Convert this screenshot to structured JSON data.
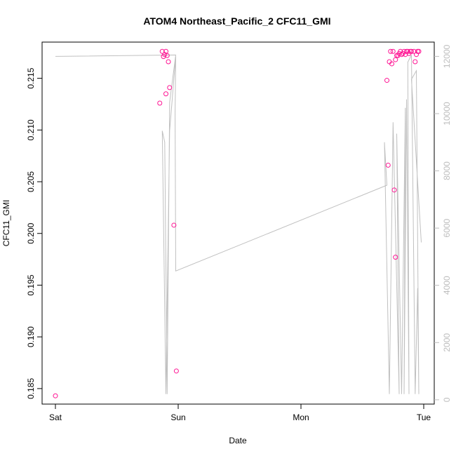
{
  "chart_data": {
    "type": "scatter",
    "title": "ATOM4 Northeast_Pacific_2 CFC11_GMI",
    "xlabel": "Date",
    "ylabel": "CFC11_GMI",
    "x_tick_labels": [
      "Sat",
      "Sun",
      "Mon",
      "Tue"
    ],
    "x_range_days": [
      0,
      3.05
    ],
    "y_ticks": [
      0.185,
      0.19,
      0.195,
      0.2,
      0.205,
      0.21,
      0.215
    ],
    "y_tick_labels": [
      "0.185",
      "0.190",
      "0.195",
      "0.200",
      "0.205",
      "0.210",
      "0.215"
    ],
    "ylim": [
      0.1835,
      0.2185
    ],
    "y2_ticks": [
      0,
      2000,
      4000,
      6000,
      8000,
      10000,
      12000
    ],
    "y2_tick_labels": [
      "0",
      "2000",
      "4000",
      "6000",
      "8000",
      "10000",
      "12000"
    ],
    "y2lim": [
      -150,
      12500
    ],
    "grid": false,
    "colors": {
      "points": "#ff1493",
      "line": "#c0c0c0",
      "axis": "#000000",
      "y2_axis": "#bdbdbd"
    },
    "series": [
      {
        "kind": "points",
        "axis": "left",
        "x": [
          0.0,
          0.87,
          0.89,
          0.88,
          0.9,
          0.91,
          0.92,
          0.93,
          0.85,
          0.9,
          0.965,
          0.985,
          2.72,
          2.7,
          2.73,
          2.74,
          2.75,
          2.77,
          2.78,
          2.79,
          2.8,
          2.81,
          2.82,
          2.83,
          2.84,
          2.85,
          2.86,
          2.87,
          2.88,
          2.89,
          2.9,
          2.92,
          2.93,
          2.94,
          2.95,
          2.96,
          2.71,
          2.76,
          2.77
        ],
        "y": [
          0.1843,
          0.2176,
          0.2173,
          0.2171,
          0.2176,
          0.2172,
          0.2166,
          0.2141,
          0.2126,
          0.2135,
          0.2008,
          0.1867,
          0.2166,
          0.2148,
          0.2176,
          0.2164,
          0.2176,
          0.2168,
          0.2172,
          0.2172,
          0.2174,
          0.2176,
          0.2173,
          0.2174,
          0.2176,
          0.2173,
          0.2176,
          0.2176,
          0.2174,
          0.2176,
          0.2176,
          0.2176,
          0.2166,
          0.2173,
          0.2176,
          0.2176,
          0.2066,
          0.2042,
          0.1977
        ]
      },
      {
        "kind": "line",
        "axis": "right",
        "x": [
          0.0,
          0.98,
          0.98,
          0.93,
          0.91,
          0.89,
          0.87,
          0.9,
          0.93,
          0.98,
          0.975,
          0.98,
          2.7,
          2.68,
          2.72,
          2.75,
          2.8,
          2.78,
          2.82,
          2.85,
          2.84,
          2.86,
          2.88,
          2.87,
          2.9,
          2.93,
          2.95,
          2.96,
          2.94,
          2.9,
          2.98
        ],
        "y": [
          12000,
          12050,
          12050,
          10400,
          200,
          9000,
          9400,
          200,
          9400,
          12000,
          10000,
          4500,
          7500,
          9000,
          200,
          9700,
          200,
          9300,
          200,
          10200,
          200,
          10500,
          200,
          11800,
          12050,
          200,
          3900,
          200,
          11500,
          11200,
          5500
        ]
      }
    ]
  }
}
